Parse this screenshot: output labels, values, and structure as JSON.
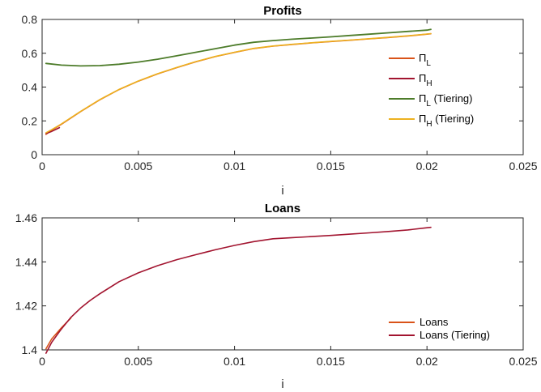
{
  "chart_data": [
    {
      "type": "line",
      "title": "Profits",
      "xlabel": "i",
      "ylabel": "",
      "xlim": [
        0,
        0.025
      ],
      "ylim": [
        0,
        0.8
      ],
      "xticks": [
        0,
        0.005,
        0.01,
        0.015,
        0.02,
        0.025
      ],
      "xtick_labels": [
        "0",
        "0.005",
        "0.01",
        "0.015",
        "0.02",
        "0.025"
      ],
      "yticks": [
        0,
        0.2,
        0.4,
        0.6,
        0.8
      ],
      "ytick_labels": [
        "0",
        "0.2",
        "0.4",
        "0.6",
        "0.8"
      ],
      "grid": false,
      "legend_position": "right",
      "series": [
        {
          "name": "Π_L",
          "legend_main": "Π",
          "legend_sub": "L",
          "legend_suffix": "",
          "color": "#D95319",
          "width": 1.6,
          "x": [
            0.0002,
            0.0005,
            0.001,
            0.002,
            0.003,
            0.004,
            0.005,
            0.006,
            0.007,
            0.008,
            0.009,
            0.01,
            0.011,
            0.012,
            0.013,
            0.014,
            0.015,
            0.016,
            0.017,
            0.018,
            0.019,
            0.02,
            0.0202
          ],
          "y": [
            0.12,
            0.145,
            0.18,
            0.255,
            0.325,
            0.385,
            0.435,
            0.478,
            0.515,
            0.55,
            0.58,
            0.605,
            0.628,
            0.642,
            0.652,
            0.661,
            0.669,
            0.677,
            0.685,
            0.693,
            0.702,
            0.713,
            0.715
          ]
        },
        {
          "name": "Π_H",
          "legend_main": "Π",
          "legend_sub": "H",
          "legend_suffix": "",
          "color": "#A2142F",
          "width": 1.6,
          "x": [
            0.0002,
            0.0005,
            0.0009
          ],
          "y": [
            0.125,
            0.138,
            0.16
          ]
        },
        {
          "name": "Π_L (Tiering)",
          "legend_main": "Π",
          "legend_sub": "L",
          "legend_suffix": " (Tiering)",
          "color": "#4D7C2A",
          "width": 1.8,
          "x": [
            0.0002,
            0.001,
            0.002,
            0.003,
            0.004,
            0.005,
            0.006,
            0.007,
            0.008,
            0.009,
            0.01,
            0.011,
            0.012,
            0.013,
            0.014,
            0.015,
            0.016,
            0.017,
            0.018,
            0.019,
            0.02,
            0.0202
          ],
          "y": [
            0.54,
            0.53,
            0.525,
            0.527,
            0.535,
            0.548,
            0.565,
            0.585,
            0.606,
            0.627,
            0.648,
            0.665,
            0.675,
            0.683,
            0.69,
            0.697,
            0.705,
            0.713,
            0.721,
            0.729,
            0.737,
            0.741
          ]
        },
        {
          "name": "Π_H (Tiering)",
          "legend_main": "Π",
          "legend_sub": "H",
          "legend_suffix": " (Tiering)",
          "color": "#EDB120",
          "width": 1.6,
          "x": [
            0.0002,
            0.0005,
            0.001,
            0.002,
            0.003,
            0.004,
            0.005,
            0.006,
            0.007,
            0.008,
            0.009,
            0.01,
            0.011,
            0.012,
            0.013,
            0.014,
            0.015,
            0.016,
            0.017,
            0.018,
            0.019,
            0.02,
            0.0202
          ],
          "y": [
            0.13,
            0.148,
            0.182,
            0.256,
            0.326,
            0.386,
            0.436,
            0.479,
            0.516,
            0.551,
            0.581,
            0.606,
            0.629,
            0.643,
            0.653,
            0.662,
            0.67,
            0.678,
            0.686,
            0.694,
            0.703,
            0.714,
            0.716
          ]
        }
      ]
    },
    {
      "type": "line",
      "title": "Loans",
      "xlabel": "i",
      "ylabel": "",
      "xlim": [
        0,
        0.025
      ],
      "ylim": [
        1.4,
        1.46
      ],
      "xticks": [
        0,
        0.005,
        0.01,
        0.015,
        0.02,
        0.025
      ],
      "xtick_labels": [
        "0",
        "0.005",
        "0.01",
        "0.015",
        "0.02",
        "0.025"
      ],
      "yticks": [
        1.4,
        1.42,
        1.44,
        1.46
      ],
      "ytick_labels": [
        "1.4",
        "1.42",
        "1.44",
        "1.46"
      ],
      "grid": false,
      "legend_position": "bottom-right",
      "series": [
        {
          "name": "Loans",
          "legend_main": "Loans",
          "legend_sub": "",
          "legend_suffix": "",
          "color": "#D95319",
          "width": 1.6,
          "x": [
            0.0002,
            0.0005,
            0.001,
            0.0015
          ],
          "y": [
            1.4005,
            1.405,
            1.41,
            1.4145
          ]
        },
        {
          "name": "Loans (Tiering)",
          "legend_main": "Loans (Tiering)",
          "legend_sub": "",
          "legend_suffix": "",
          "color": "#A2142F",
          "width": 1.6,
          "x": [
            0.0002,
            0.0005,
            0.001,
            0.0015,
            0.002,
            0.0025,
            0.003,
            0.004,
            0.005,
            0.006,
            0.007,
            0.008,
            0.009,
            0.01,
            0.011,
            0.012,
            0.013,
            0.014,
            0.015,
            0.016,
            0.017,
            0.018,
            0.019,
            0.02,
            0.0202
          ],
          "y": [
            1.3985,
            1.4035,
            1.4095,
            1.4148,
            1.419,
            1.4225,
            1.4255,
            1.431,
            1.435,
            1.4383,
            1.441,
            1.4433,
            1.4455,
            1.4475,
            1.4492,
            1.4505,
            1.451,
            1.4515,
            1.452,
            1.4526,
            1.4532,
            1.4538,
            1.4545,
            1.4555,
            1.4557
          ]
        }
      ]
    }
  ]
}
